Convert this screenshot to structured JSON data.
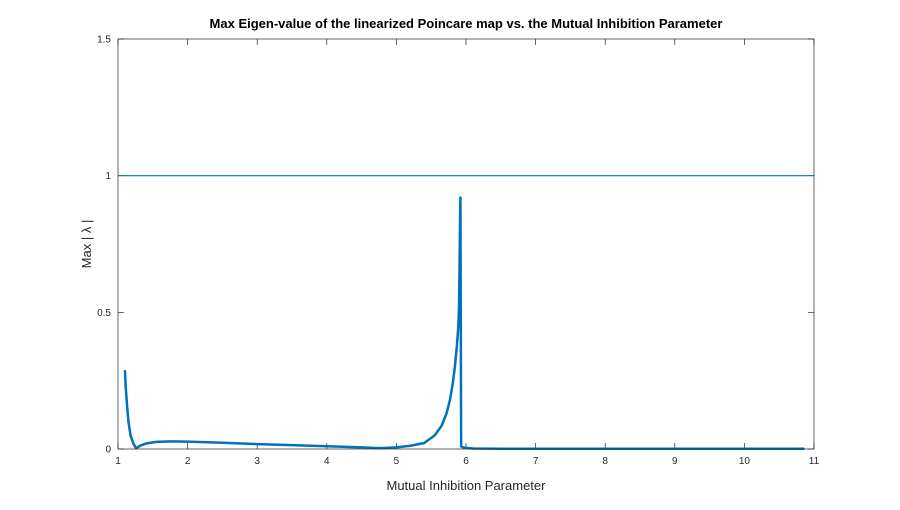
{
  "chart_data": {
    "type": "line",
    "title": "Max Eigen-value of the linearized Poincare map vs. the Mutual Inhibition Parameter",
    "xlabel": "Mutual Inhibition Parameter",
    "ylabel": "Max | λ |",
    "xlim": [
      1,
      11
    ],
    "ylim": [
      0,
      1.5
    ],
    "xticks": [
      1,
      2,
      3,
      4,
      5,
      6,
      7,
      8,
      9,
      10,
      11
    ],
    "yticks": [
      0,
      0.5,
      1,
      1.5
    ],
    "xtick_labels": [
      "1",
      "2",
      "3",
      "4",
      "5",
      "6",
      "7",
      "8",
      "9",
      "10",
      "11"
    ],
    "ytick_labels": [
      "0",
      "0.5",
      "1",
      "1.5"
    ],
    "grid": false,
    "box": true,
    "colors": {
      "series": "#0072BD",
      "axes": "#262626"
    },
    "series": [
      {
        "type": "line",
        "x": [
          1.1,
          1.11,
          1.13,
          1.15,
          1.18,
          1.22,
          1.26,
          1.32,
          1.4,
          1.55,
          1.75,
          2.0,
          2.5,
          3.0,
          3.5,
          4.0,
          4.5,
          4.75,
          5.0,
          5.2,
          5.4,
          5.55,
          5.65,
          5.72,
          5.77,
          5.81,
          5.84,
          5.87,
          5.89,
          5.9,
          5.905,
          5.91,
          5.915,
          5.92,
          5.925,
          5.93,
          5.94,
          5.96,
          6.0,
          6.1,
          6.5,
          7.0,
          8.0,
          9.0,
          10.0,
          10.85
        ],
        "y": [
          0.285,
          0.23,
          0.16,
          0.1,
          0.05,
          0.02,
          0.003,
          0.012,
          0.02,
          0.026,
          0.028,
          0.027,
          0.023,
          0.018,
          0.014,
          0.01,
          0.006,
          0.003,
          0.006,
          0.012,
          0.022,
          0.05,
          0.085,
          0.13,
          0.18,
          0.24,
          0.3,
          0.38,
          0.45,
          0.52,
          0.62,
          0.73,
          0.85,
          0.92,
          0.5,
          0.01,
          0.008,
          0.006,
          0.004,
          0.002,
          0.001,
          0.001,
          0.001,
          0.001,
          0.001,
          0.001
        ]
      },
      {
        "type": "hline",
        "y": 1
      }
    ]
  }
}
